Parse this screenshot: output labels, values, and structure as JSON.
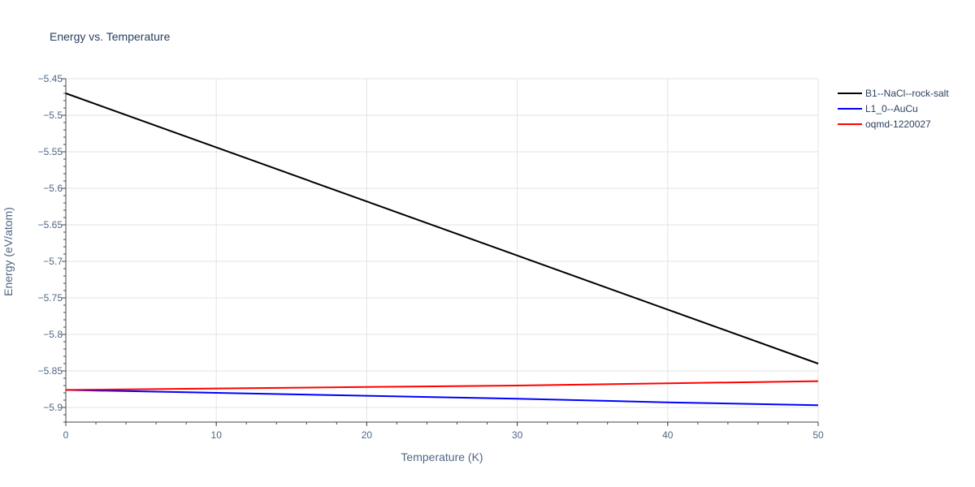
{
  "chart_data": {
    "type": "line",
    "title": "Energy vs. Temperature",
    "xlabel": "Temperature (K)",
    "ylabel": "Energy (eV/atom)",
    "xlim": [
      0,
      50
    ],
    "ylim": [
      -5.92,
      -5.45
    ],
    "xticks": [
      0,
      10,
      20,
      30,
      40,
      50
    ],
    "yticks": [
      -5.45,
      -5.5,
      -5.55,
      -5.6,
      -5.65,
      -5.7,
      -5.75,
      -5.8,
      -5.85,
      -5.9
    ],
    "ytick_labels": [
      "−5.45",
      "−5.5",
      "−5.55",
      "−5.6",
      "−5.65",
      "−5.7",
      "−5.75",
      "−5.8",
      "−5.85",
      "−5.9"
    ],
    "grid": true,
    "legend_position": "top-right outside",
    "series": [
      {
        "name": "B1--NaCl--rock-salt",
        "color": "#000000",
        "x": [
          0,
          10,
          20,
          30,
          40,
          50
        ],
        "y": [
          -5.47,
          -5.544,
          -5.618,
          -5.692,
          -5.766,
          -5.84
        ]
      },
      {
        "name": "L1_0--AuCu",
        "color": "#0000ff",
        "x": [
          0,
          10,
          20,
          30,
          40,
          50
        ],
        "y": [
          -5.876,
          -5.88,
          -5.884,
          -5.888,
          -5.893,
          -5.897
        ]
      },
      {
        "name": "oqmd-1220027",
        "color": "#ff0000",
        "x": [
          0,
          10,
          20,
          30,
          40,
          50
        ],
        "y": [
          -5.876,
          -5.874,
          -5.872,
          -5.87,
          -5.867,
          -5.864
        ]
      }
    ]
  }
}
